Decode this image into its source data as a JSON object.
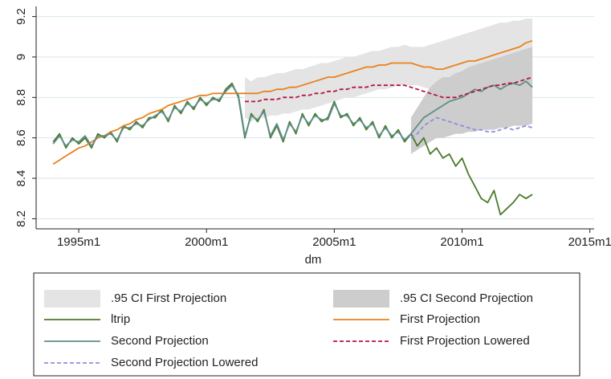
{
  "chart_data": {
    "type": "line",
    "x_label": "dm",
    "x": [
      408,
      411,
      414,
      417,
      420,
      423,
      426,
      429,
      432,
      435,
      438,
      441,
      444,
      447,
      450,
      453,
      456,
      459,
      462,
      465,
      468,
      471,
      474,
      477,
      480,
      483,
      486,
      489,
      492,
      495,
      498,
      501,
      504,
      507,
      510,
      513,
      516,
      519,
      522,
      525,
      528,
      531,
      534,
      537,
      540,
      543,
      546,
      549,
      552,
      555,
      558,
      561,
      564,
      567,
      570,
      573,
      576,
      579,
      582,
      585,
      588,
      591,
      594,
      597,
      600,
      603,
      606,
      609,
      612,
      615,
      618,
      621,
      624,
      627,
      630,
      633
    ],
    "xlim": [
      400,
      662
    ],
    "xticks": [
      {
        "value": 420,
        "label": "1995m1"
      },
      {
        "value": 480,
        "label": "2000m1"
      },
      {
        "value": 540,
        "label": "2005m1"
      },
      {
        "value": 600,
        "label": "2010m1"
      },
      {
        "value": 660,
        "label": "2015m1"
      }
    ],
    "ylim": [
      8.15,
      9.25
    ],
    "yticks": [
      8.2,
      8.4,
      8.6,
      8.8,
      9,
      9.2
    ],
    "grid": true,
    "series": [
      {
        "name": ".95 CI First Projection",
        "style": "band",
        "color": "#e4e4e4",
        "upper": [
          null,
          null,
          null,
          null,
          null,
          null,
          null,
          null,
          null,
          null,
          null,
          null,
          null,
          null,
          null,
          null,
          null,
          null,
          null,
          null,
          null,
          null,
          null,
          null,
          null,
          null,
          null,
          null,
          null,
          null,
          8.9,
          8.88,
          8.9,
          8.9,
          8.91,
          8.92,
          8.92,
          8.93,
          8.94,
          8.94,
          8.95,
          8.96,
          8.97,
          8.97,
          8.98,
          8.99,
          9.0,
          9.0,
          9.01,
          9.02,
          9.03,
          9.03,
          9.04,
          9.05,
          9.05,
          9.06,
          9.05,
          9.05,
          9.05,
          9.06,
          9.07,
          9.08,
          9.09,
          9.1,
          9.11,
          9.12,
          9.13,
          9.14,
          9.15,
          9.16,
          9.17,
          9.17,
          9.18,
          9.18,
          9.19,
          9.19
        ],
        "lower": [
          null,
          null,
          null,
          null,
          null,
          null,
          null,
          null,
          null,
          null,
          null,
          null,
          null,
          null,
          null,
          null,
          null,
          null,
          null,
          null,
          null,
          null,
          null,
          null,
          null,
          null,
          null,
          null,
          null,
          null,
          8.7,
          8.68,
          8.7,
          8.7,
          8.71,
          8.71,
          8.72,
          8.72,
          8.73,
          8.74,
          8.74,
          8.75,
          8.76,
          8.77,
          8.78,
          8.79,
          8.8,
          8.8,
          8.81,
          8.82,
          8.83,
          8.84,
          8.84,
          8.85,
          8.86,
          8.86,
          8.86,
          8.86,
          8.85,
          8.84,
          8.83,
          8.82,
          8.82,
          8.83,
          8.84,
          8.85,
          8.86,
          8.87,
          8.88,
          8.89,
          8.9,
          8.9,
          8.91,
          8.92,
          8.92,
          8.93
        ]
      },
      {
        "name": ".95 CI Second Projection",
        "style": "band",
        "color": "#cdcdcd",
        "upper": [
          null,
          null,
          null,
          null,
          null,
          null,
          null,
          null,
          null,
          null,
          null,
          null,
          null,
          null,
          null,
          null,
          null,
          null,
          null,
          null,
          null,
          null,
          null,
          null,
          null,
          null,
          null,
          null,
          null,
          null,
          null,
          null,
          null,
          null,
          null,
          null,
          null,
          null,
          null,
          null,
          null,
          null,
          null,
          null,
          null,
          null,
          null,
          null,
          null,
          null,
          null,
          null,
          null,
          null,
          null,
          null,
          8.7,
          8.75,
          8.8,
          8.85,
          8.88,
          8.9,
          8.9,
          8.92,
          8.93,
          8.95,
          8.96,
          8.97,
          8.98,
          8.99,
          9.0,
          9.01,
          9.02,
          9.03,
          9.04,
          9.05
        ],
        "lower": [
          null,
          null,
          null,
          null,
          null,
          null,
          null,
          null,
          null,
          null,
          null,
          null,
          null,
          null,
          null,
          null,
          null,
          null,
          null,
          null,
          null,
          null,
          null,
          null,
          null,
          null,
          null,
          null,
          null,
          null,
          null,
          null,
          null,
          null,
          null,
          null,
          null,
          null,
          null,
          null,
          null,
          null,
          null,
          null,
          null,
          null,
          null,
          null,
          null,
          null,
          null,
          null,
          null,
          null,
          null,
          null,
          8.52,
          8.54,
          8.56,
          8.58,
          8.6,
          8.6,
          8.61,
          8.62,
          8.62,
          8.63,
          8.63,
          8.64,
          8.64,
          8.64,
          8.65,
          8.65,
          8.66,
          8.66,
          8.66,
          8.67
        ]
      },
      {
        "name": "ltrip",
        "style": "solid",
        "color": "#4b7a2a",
        "values": [
          8.58,
          8.62,
          8.55,
          8.6,
          8.57,
          8.6,
          8.55,
          8.62,
          8.6,
          8.63,
          8.58,
          8.66,
          8.64,
          8.68,
          8.65,
          8.7,
          8.7,
          8.74,
          8.68,
          8.76,
          8.72,
          8.78,
          8.74,
          8.8,
          8.76,
          8.8,
          8.78,
          8.84,
          8.87,
          8.8,
          8.6,
          8.72,
          8.68,
          8.74,
          8.6,
          8.66,
          8.58,
          8.68,
          8.62,
          8.72,
          8.66,
          8.72,
          8.68,
          8.7,
          8.78,
          8.7,
          8.72,
          8.66,
          8.7,
          8.64,
          8.68,
          8.6,
          8.66,
          8.6,
          8.64,
          8.58,
          8.62,
          8.56,
          8.6,
          8.52,
          8.55,
          8.5,
          8.52,
          8.46,
          8.5,
          8.42,
          8.36,
          8.3,
          8.28,
          8.34,
          8.22,
          8.25,
          8.28,
          8.32,
          8.3,
          8.32
        ]
      },
      {
        "name": "First Projection",
        "style": "solid",
        "color": "#e8821e",
        "values": [
          8.47,
          8.49,
          8.51,
          8.53,
          8.55,
          8.56,
          8.58,
          8.6,
          8.61,
          8.63,
          8.64,
          8.66,
          8.67,
          8.69,
          8.7,
          8.72,
          8.73,
          8.74,
          8.76,
          8.77,
          8.78,
          8.79,
          8.8,
          8.81,
          8.81,
          8.82,
          8.82,
          8.82,
          8.82,
          8.82,
          8.82,
          8.82,
          8.82,
          8.83,
          8.83,
          8.84,
          8.84,
          8.85,
          8.85,
          8.86,
          8.87,
          8.88,
          8.89,
          8.9,
          8.9,
          8.91,
          8.92,
          8.93,
          8.94,
          8.95,
          8.95,
          8.96,
          8.96,
          8.97,
          8.97,
          8.97,
          8.97,
          8.96,
          8.95,
          8.95,
          8.94,
          8.94,
          8.95,
          8.96,
          8.97,
          8.98,
          8.98,
          8.99,
          9.0,
          9.01,
          9.02,
          9.03,
          9.04,
          9.05,
          9.07,
          9.08
        ]
      },
      {
        "name": "Second Projection",
        "style": "solid",
        "color": "#5e8e8a",
        "values": [
          8.57,
          8.61,
          8.56,
          8.59,
          8.58,
          8.61,
          8.56,
          8.61,
          8.61,
          8.62,
          8.59,
          8.65,
          8.65,
          8.67,
          8.66,
          8.69,
          8.71,
          8.73,
          8.69,
          8.75,
          8.73,
          8.77,
          8.75,
          8.79,
          8.77,
          8.79,
          8.79,
          8.83,
          8.86,
          8.81,
          8.61,
          8.71,
          8.69,
          8.73,
          8.61,
          8.67,
          8.59,
          8.67,
          8.63,
          8.71,
          8.67,
          8.71,
          8.69,
          8.69,
          8.77,
          8.71,
          8.71,
          8.67,
          8.69,
          8.65,
          8.67,
          8.61,
          8.65,
          8.61,
          8.63,
          8.59,
          8.62,
          8.66,
          8.7,
          8.72,
          8.74,
          8.76,
          8.78,
          8.79,
          8.8,
          8.82,
          8.84,
          8.83,
          8.85,
          8.86,
          8.84,
          8.86,
          8.87,
          8.86,
          8.88,
          8.85
        ]
      },
      {
        "name": "First Projection Lowered",
        "style": "dash",
        "color": "#b5153f",
        "values": [
          null,
          null,
          null,
          null,
          null,
          null,
          null,
          null,
          null,
          null,
          null,
          null,
          null,
          null,
          null,
          null,
          null,
          null,
          null,
          null,
          null,
          null,
          null,
          null,
          null,
          null,
          null,
          null,
          null,
          null,
          8.78,
          8.78,
          8.78,
          8.79,
          8.79,
          8.79,
          8.8,
          8.8,
          8.8,
          8.81,
          8.81,
          8.82,
          8.82,
          8.83,
          8.83,
          8.84,
          8.84,
          8.85,
          8.85,
          8.85,
          8.86,
          8.86,
          8.86,
          8.86,
          8.86,
          8.86,
          8.85,
          8.84,
          8.83,
          8.82,
          8.81,
          8.8,
          8.8,
          8.8,
          8.81,
          8.82,
          8.83,
          8.84,
          8.85,
          8.86,
          8.86,
          8.87,
          8.87,
          8.88,
          8.89,
          8.9
        ]
      },
      {
        "name": "Second Projection Lowered",
        "style": "dash",
        "color": "#8f8fde",
        "values": [
          null,
          null,
          null,
          null,
          null,
          null,
          null,
          null,
          null,
          null,
          null,
          null,
          null,
          null,
          null,
          null,
          null,
          null,
          null,
          null,
          null,
          null,
          null,
          null,
          null,
          null,
          null,
          null,
          null,
          null,
          null,
          null,
          null,
          null,
          null,
          null,
          null,
          null,
          null,
          null,
          null,
          null,
          null,
          null,
          null,
          null,
          null,
          null,
          null,
          null,
          null,
          null,
          null,
          null,
          null,
          null,
          8.6,
          8.62,
          8.66,
          8.68,
          8.7,
          8.69,
          8.68,
          8.67,
          8.66,
          8.65,
          8.64,
          8.64,
          8.63,
          8.63,
          8.64,
          8.65,
          8.64,
          8.65,
          8.66,
          8.65
        ]
      }
    ]
  }
}
